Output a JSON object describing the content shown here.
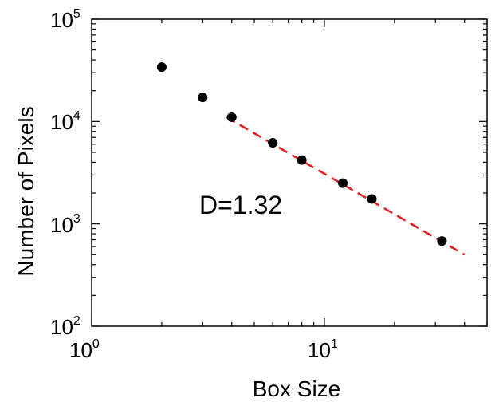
{
  "chart_data": {
    "type": "scatter",
    "title": "",
    "xlabel": "Box Size",
    "ylabel": "Number of Pixels",
    "xscale": "log",
    "yscale": "log",
    "xlim": [
      1,
      50
    ],
    "ylim": [
      100,
      100000
    ],
    "grid": false,
    "x_ticks": [
      {
        "base": "10",
        "exp": "0"
      },
      {
        "base": "10",
        "exp": "1"
      }
    ],
    "y_ticks": [
      {
        "base": "10",
        "exp": "2"
      },
      {
        "base": "10",
        "exp": "3"
      },
      {
        "base": "10",
        "exp": "4"
      },
      {
        "base": "10",
        "exp": "5"
      }
    ],
    "series": [
      {
        "marker": "circle",
        "color": "#000000",
        "x": [
          2,
          3,
          4,
          6,
          8,
          12,
          16,
          32
        ],
        "y": [
          34000,
          17200,
          11000,
          6200,
          4200,
          2500,
          1750,
          680
        ]
      }
    ],
    "fit_line": {
      "style": "dashed",
      "color": "#e02020",
      "x": [
        3.8,
        40
      ],
      "y": [
        11000,
        500
      ]
    },
    "annotation": "D=1.32"
  }
}
